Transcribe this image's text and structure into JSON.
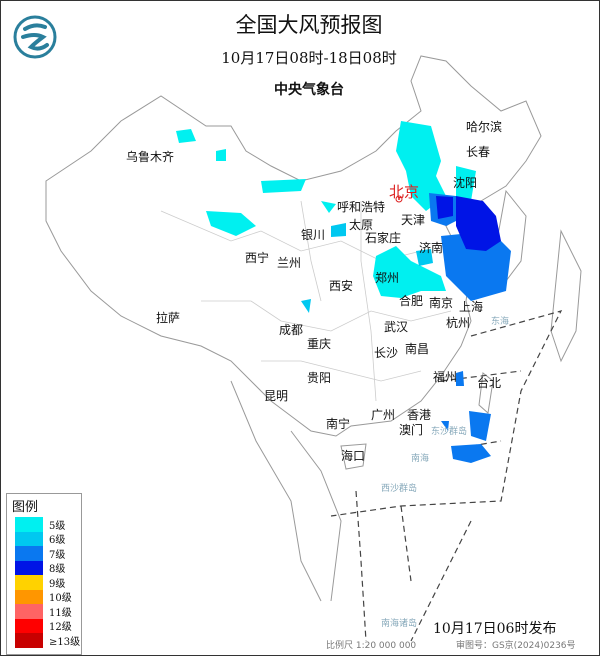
{
  "header": {
    "title": "全国大风预报图",
    "period": "10月17日08时-18日08时",
    "issuer": "中央气象台"
  },
  "logo": {
    "icon": "cma-dragon-logo",
    "color": "#2a7f9c"
  },
  "cities": {
    "wulumuqi": "乌鲁木齐",
    "haerbin": "哈尔滨",
    "changchun": "长春",
    "shenyang": "沈阳",
    "beijing": "北京",
    "huhehaote": "呼和浩特",
    "tianjin": "天津",
    "yinchuan": "银川",
    "taiyuan": "太原",
    "shijiazhuang": "石家庄",
    "jinan": "济南",
    "xining": "西宁",
    "lanzhou": "兰州",
    "zhengzhou": "郑州",
    "xian": "西安",
    "hefei": "合肥",
    "nanjing": "南京",
    "shanghai": "上海",
    "lasa": "拉萨",
    "chengdu": "成都",
    "wuhan": "武汉",
    "hangzhou": "杭州",
    "chongqing": "重庆",
    "changsha": "长沙",
    "nanchang": "南昌",
    "guiyang": "贵阳",
    "fuzhou": "福州",
    "taibei": "台北",
    "kunming": "昆明",
    "guangzhou": "广州",
    "xianggang": "香港",
    "aomen": "澳门",
    "nanning": "南宁",
    "haikou": "海口"
  },
  "seas": {
    "donghai": "东海",
    "nanhai": "南海",
    "dongsha": "东沙群岛",
    "xisha": "西沙群岛",
    "nanhai_islands": "南海诸岛"
  },
  "legend": {
    "title": "图例",
    "items": [
      {
        "label": "5级",
        "color": "#00f0f0"
      },
      {
        "label": "6级",
        "color": "#00c8f0"
      },
      {
        "label": "7级",
        "color": "#0a78f0"
      },
      {
        "label": "8级",
        "color": "#0014e6"
      },
      {
        "label": "9级",
        "color": "#ffd200"
      },
      {
        "label": "10级",
        "color": "#ff9600"
      },
      {
        "label": "11级",
        "color": "#ff6464"
      },
      {
        "label": "12级",
        "color": "#ff0000"
      },
      {
        "label": "≥13级",
        "color": "#c80000"
      }
    ]
  },
  "footer": {
    "issued": "10月17日06时发布",
    "scale": "比例尺 1:20 000 000",
    "review": "审图号：GS京(2024)0236号"
  }
}
